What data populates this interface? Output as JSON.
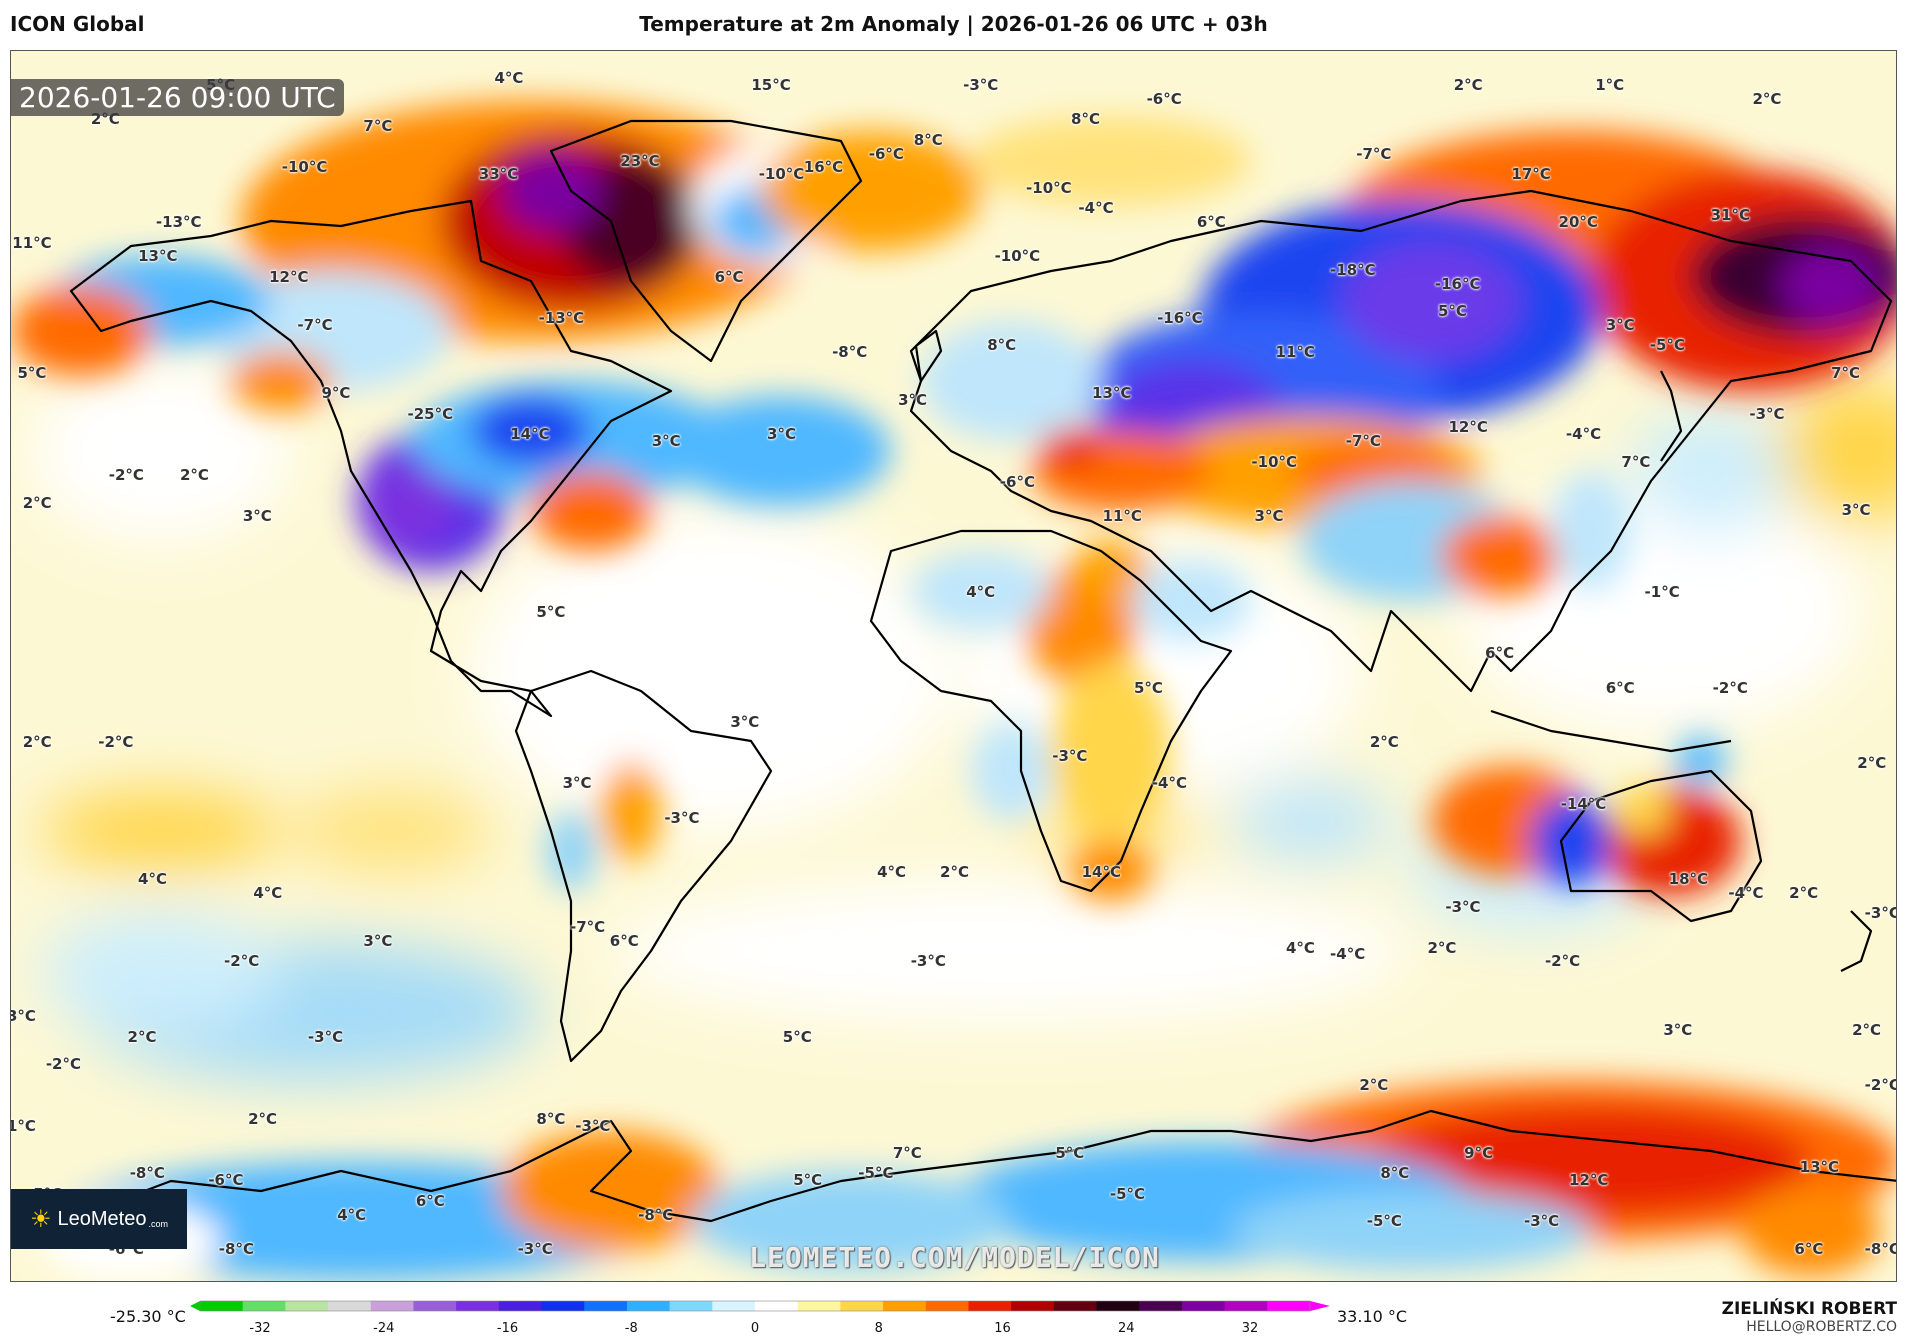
{
  "header": {
    "model": "ICON Global",
    "title": "Temperature at 2m Anomaly | 2026-01-26 06 UTC + 03h"
  },
  "map": {
    "timestamp": "2026-01-26 09:00 UTC",
    "watermark": "LEOMETEO.COM/MODEL/ICON",
    "logo": {
      "brand": "LeoMeteo",
      "suffix": ".com",
      "icon": "sun-icon"
    },
    "labels": [
      {
        "t": "5°C",
        "lon": -140,
        "lat": 85
      },
      {
        "t": "4°C",
        "lon": -85,
        "lat": 86
      },
      {
        "t": "15°C",
        "lon": -35,
        "lat": 85
      },
      {
        "t": "-3°C",
        "lon": 5,
        "lat": 85
      },
      {
        "t": "-6°C",
        "lon": 40,
        "lat": 83
      },
      {
        "t": "2°C",
        "lon": 98,
        "lat": 85
      },
      {
        "t": "1°C",
        "lon": 125,
        "lat": 85
      },
      {
        "t": "2°C",
        "lon": 155,
        "lat": 83
      },
      {
        "t": "2°C",
        "lon": -162,
        "lat": 80
      },
      {
        "t": "7°C",
        "lon": -110,
        "lat": 79
      },
      {
        "t": "8°C",
        "lon": -5,
        "lat": 77
      },
      {
        "t": "8°C",
        "lon": 25,
        "lat": 80
      },
      {
        "t": "-7°C",
        "lon": 80,
        "lat": 75
      },
      {
        "t": "17°C",
        "lon": 110,
        "lat": 72
      },
      {
        "t": "-10°C",
        "lon": -124,
        "lat": 73
      },
      {
        "t": "33°C",
        "lon": -87,
        "lat": 72
      },
      {
        "t": "23°C",
        "lon": -60,
        "lat": 74
      },
      {
        "t": "-10°C",
        "lon": -33,
        "lat": 72
      },
      {
        "t": "16°C",
        "lon": -25,
        "lat": 73
      },
      {
        "t": "-6°C",
        "lon": -13,
        "lat": 75
      },
      {
        "t": "-10°C",
        "lon": 18,
        "lat": 70
      },
      {
        "t": "-4°C",
        "lon": 27,
        "lat": 67
      },
      {
        "t": "6°C",
        "lon": 49,
        "lat": 65
      },
      {
        "t": "20°C",
        "lon": 119,
        "lat": 65
      },
      {
        "t": "31°C",
        "lon": 148,
        "lat": 66
      },
      {
        "t": "-13°C",
        "lon": -148,
        "lat": 65
      },
      {
        "t": "11°C",
        "lon": -176,
        "lat": 62
      },
      {
        "t": "13°C",
        "lon": -152,
        "lat": 60
      },
      {
        "t": "12°C",
        "lon": -127,
        "lat": 57
      },
      {
        "t": "6°C",
        "lon": -43,
        "lat": 57
      },
      {
        "t": "-10°C",
        "lon": 12,
        "lat": 60
      },
      {
        "t": "-18°C",
        "lon": 76,
        "lat": 58
      },
      {
        "t": "-16°C",
        "lon": 96,
        "lat": 56
      },
      {
        "t": "-7°C",
        "lon": -122,
        "lat": 50
      },
      {
        "t": "-13°C",
        "lon": -75,
        "lat": 51
      },
      {
        "t": "-8°C",
        "lon": -20,
        "lat": 46
      },
      {
        "t": "8°C",
        "lon": 9,
        "lat": 47
      },
      {
        "t": "-16°C",
        "lon": 43,
        "lat": 51
      },
      {
        "t": "5°C",
        "lon": 95,
        "lat": 52
      },
      {
        "t": "3°C",
        "lon": 127,
        "lat": 50
      },
      {
        "t": "-5°C",
        "lon": 136,
        "lat": 47
      },
      {
        "t": "5°C",
        "lon": -176,
        "lat": 43
      },
      {
        "t": "7°C",
        "lon": 170,
        "lat": 43
      },
      {
        "t": "9°C",
        "lon": -118,
        "lat": 40
      },
      {
        "t": "-25°C",
        "lon": -100,
        "lat": 37
      },
      {
        "t": "14°C",
        "lon": -81,
        "lat": 34
      },
      {
        "t": "3°C",
        "lon": -55,
        "lat": 33
      },
      {
        "t": "3°C",
        "lon": -33,
        "lat": 34
      },
      {
        "t": "3°C",
        "lon": -8,
        "lat": 39
      },
      {
        "t": "13°C",
        "lon": 30,
        "lat": 40
      },
      {
        "t": "11°C",
        "lon": 65,
        "lat": 46
      },
      {
        "t": "-3°C",
        "lon": 155,
        "lat": 37
      },
      {
        "t": "-2°C",
        "lon": -158,
        "lat": 28
      },
      {
        "t": "2°C",
        "lon": -145,
        "lat": 28
      },
      {
        "t": "2°C",
        "lon": -175,
        "lat": 24
      },
      {
        "t": "3°C",
        "lon": -133,
        "lat": 22
      },
      {
        "t": "-6°C",
        "lon": 12,
        "lat": 27
      },
      {
        "t": "11°C",
        "lon": 32,
        "lat": 22
      },
      {
        "t": "3°C",
        "lon": 60,
        "lat": 22
      },
      {
        "t": "-7°C",
        "lon": 78,
        "lat": 33
      },
      {
        "t": "12°C",
        "lon": 98,
        "lat": 35
      },
      {
        "t": "-4°C",
        "lon": 120,
        "lat": 34
      },
      {
        "t": "7°C",
        "lon": 130,
        "lat": 30
      },
      {
        "t": "-10°C",
        "lon": 61,
        "lat": 30
      },
      {
        "t": "3°C",
        "lon": 172,
        "lat": 23
      },
      {
        "t": "4°C",
        "lon": 5,
        "lat": 11
      },
      {
        "t": "-1°C",
        "lon": 135,
        "lat": 11
      },
      {
        "t": "5°C",
        "lon": -77,
        "lat": 8
      },
      {
        "t": "6°C",
        "lon": 104,
        "lat": 2
      },
      {
        "t": "6°C",
        "lon": 127,
        "lat": -3
      },
      {
        "t": "-2°C",
        "lon": 148,
        "lat": -3
      },
      {
        "t": "5°C",
        "lon": 37,
        "lat": -3
      },
      {
        "t": "3°C",
        "lon": -40,
        "lat": -8
      },
      {
        "t": "2°C",
        "lon": -175,
        "lat": -11
      },
      {
        "t": "-2°C",
        "lon": -160,
        "lat": -11
      },
      {
        "t": "2°C",
        "lon": 82,
        "lat": -11
      },
      {
        "t": "-3°C",
        "lon": 22,
        "lat": -13
      },
      {
        "t": "-4°C",
        "lon": 41,
        "lat": -17
      },
      {
        "t": "2°C",
        "lon": 175,
        "lat": -14
      },
      {
        "t": "3°C",
        "lon": -72,
        "lat": -17
      },
      {
        "t": "-3°C",
        "lon": -52,
        "lat": -22
      },
      {
        "t": "-14°C",
        "lon": 120,
        "lat": -20
      },
      {
        "t": "14°C",
        "lon": 28,
        "lat": -30
      },
      {
        "t": "18°C",
        "lon": 140,
        "lat": -31
      },
      {
        "t": "-4°C",
        "lon": 151,
        "lat": -33
      },
      {
        "t": "2°C",
        "lon": 162,
        "lat": -33
      },
      {
        "t": "-3°C",
        "lon": 177,
        "lat": -36
      },
      {
        "t": "4°C",
        "lon": -153,
        "lat": -31
      },
      {
        "t": "4°C",
        "lon": -131,
        "lat": -33
      },
      {
        "t": "4°C",
        "lon": -12,
        "lat": -30
      },
      {
        "t": "2°C",
        "lon": 0,
        "lat": -30
      },
      {
        "t": "-3°C",
        "lon": 97,
        "lat": -35
      },
      {
        "t": "3°C",
        "lon": -110,
        "lat": -40
      },
      {
        "t": "-7°C",
        "lon": -70,
        "lat": -38
      },
      {
        "t": "6°C",
        "lon": -63,
        "lat": -40
      },
      {
        "t": "-2°C",
        "lon": -136,
        "lat": -43
      },
      {
        "t": "-3°C",
        "lon": -5,
        "lat": -43
      },
      {
        "t": "4°C",
        "lon": 66,
        "lat": -41
      },
      {
        "t": "-4°C",
        "lon": 75,
        "lat": -42
      },
      {
        "t": "2°C",
        "lon": 93,
        "lat": -41
      },
      {
        "t": "-2°C",
        "lon": 116,
        "lat": -43
      },
      {
        "t": "3°C",
        "lon": -178,
        "lat": -51
      },
      {
        "t": "2°C",
        "lon": -155,
        "lat": -54
      },
      {
        "t": "-3°C",
        "lon": -120,
        "lat": -54
      },
      {
        "t": "5°C",
        "lon": -30,
        "lat": -54
      },
      {
        "t": "3°C",
        "lon": 138,
        "lat": -53
      },
      {
        "t": "2°C",
        "lon": 174,
        "lat": -53
      },
      {
        "t": "-2°C",
        "lon": -170,
        "lat": -58
      },
      {
        "t": "2°C",
        "lon": 80,
        "lat": -61
      },
      {
        "t": "-2°C",
        "lon": 177,
        "lat": -61
      },
      {
        "t": "1°C",
        "lon": -178,
        "lat": -67
      },
      {
        "t": "2°C",
        "lon": -132,
        "lat": -66
      },
      {
        "t": "8°C",
        "lon": -77,
        "lat": -66
      },
      {
        "t": "-3°C",
        "lon": -69,
        "lat": -67
      },
      {
        "t": "7°C",
        "lon": -9,
        "lat": -71
      },
      {
        "t": "5°C",
        "lon": 22,
        "lat": -71
      },
      {
        "t": "9°C",
        "lon": 100,
        "lat": -71
      },
      {
        "t": "-8°C",
        "lon": -154,
        "lat": -74
      },
      {
        "t": "-6°C",
        "lon": -139,
        "lat": -75
      },
      {
        "t": "5°C",
        "lon": -28,
        "lat": -75
      },
      {
        "t": "-5°C",
        "lon": -15,
        "lat": -74
      },
      {
        "t": "8°C",
        "lon": 84,
        "lat": -74
      },
      {
        "t": "12°C",
        "lon": 121,
        "lat": -75
      },
      {
        "t": "13°C",
        "lon": 165,
        "lat": -73
      },
      {
        "t": "5°C",
        "lon": -173,
        "lat": -77
      },
      {
        "t": "6°C",
        "lon": -100,
        "lat": -78
      },
      {
        "t": "-5°C",
        "lon": 33,
        "lat": -77
      },
      {
        "t": "4°C",
        "lon": -178,
        "lat": -82
      },
      {
        "t": "4°C",
        "lon": -115,
        "lat": -80
      },
      {
        "t": "-8°C",
        "lon": -57,
        "lat": -80
      },
      {
        "t": "-5°C",
        "lon": 82,
        "lat": -81
      },
      {
        "t": "-3°C",
        "lon": 112,
        "lat": -81
      },
      {
        "t": "-6°C",
        "lon": -158,
        "lat": -85
      },
      {
        "t": "-8°C",
        "lon": -137,
        "lat": -85
      },
      {
        "t": "-3°C",
        "lon": -80,
        "lat": -85
      },
      {
        "t": "6°C",
        "lon": 163,
        "lat": -85
      },
      {
        "t": "-8°C",
        "lon": 177,
        "lat": -85
      }
    ]
  },
  "colorbar": {
    "min_label": "-25.30 °C",
    "max_label": "33.10 °C",
    "ticks": [
      "-32",
      "-24",
      "-16",
      "-8",
      "0",
      "8",
      "16",
      "24",
      "32"
    ],
    "stops": [
      "#00cc00",
      "#66dd66",
      "#b8e6a0",
      "#d9d9d9",
      "#c9a0dc",
      "#9a5fd6",
      "#7a30e0",
      "#4a1fe0",
      "#1030f0",
      "#1070ff",
      "#2fb0ff",
      "#80d8ff",
      "#d8f4ff",
      "#ffffff",
      "#fff6a0",
      "#ffd54a",
      "#ffa000",
      "#ff6a00",
      "#e82000",
      "#b00000",
      "#600010",
      "#200010",
      "#4a0050",
      "#7a00a0",
      "#b000c0",
      "#ff00ff"
    ]
  },
  "author": {
    "name": "ZIELIŃSKI ROBERT",
    "email": "HELLO@ROBERTZ.CO"
  }
}
